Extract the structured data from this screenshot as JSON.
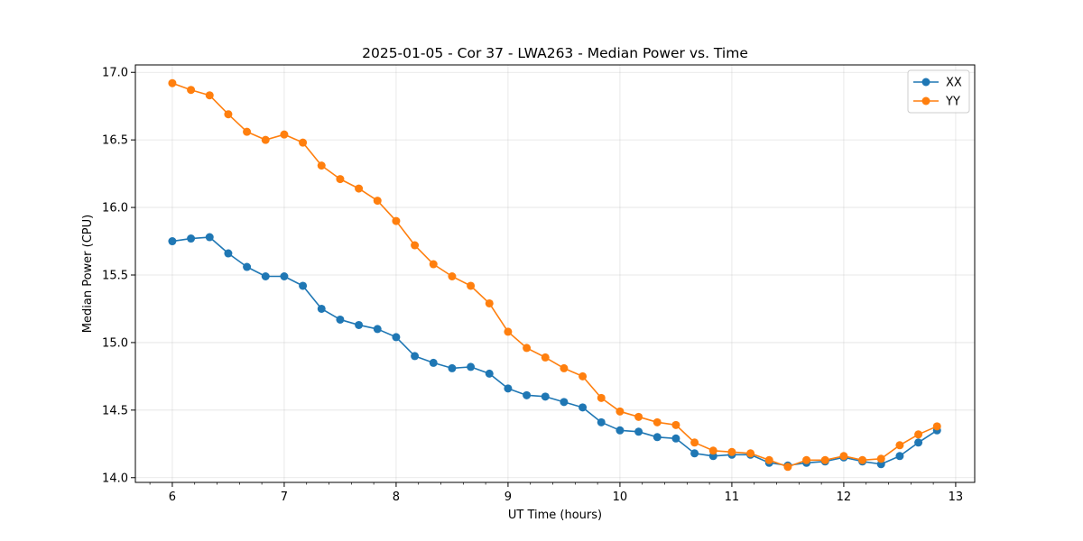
{
  "chart_data": {
    "type": "line",
    "title": "2025-01-05 - Cor 37 - LWA263 - Median Power vs. Time",
    "xlabel": "UT Time (hours)",
    "ylabel": "Median Power (CPU)",
    "xlim": [
      5.67,
      13.17
    ],
    "ylim": [
      13.965,
      17.055
    ],
    "xticks": [
      6,
      7,
      8,
      9,
      10,
      11,
      12,
      13
    ],
    "xtick_labels": [
      "6",
      "7",
      "8",
      "9",
      "10",
      "11",
      "12",
      "13"
    ],
    "xminor_step": 0.2,
    "yticks": [
      14.0,
      14.5,
      15.0,
      15.5,
      16.0,
      16.5,
      17.0
    ],
    "ytick_labels": [
      "14.0",
      "14.5",
      "15.0",
      "15.5",
      "16.0",
      "16.5",
      "17.0"
    ],
    "grid": true,
    "legend_position": "top-right",
    "x": [
      6.0,
      6.1667,
      6.3333,
      6.5,
      6.6667,
      6.8333,
      7.0,
      7.1667,
      7.3333,
      7.5,
      7.6667,
      7.8333,
      8.0,
      8.1667,
      8.3333,
      8.5,
      8.6667,
      8.8333,
      9.0,
      9.1667,
      9.3333,
      9.5,
      9.6667,
      9.8333,
      10.0,
      10.1667,
      10.3333,
      10.5,
      10.6667,
      10.8333,
      11.0,
      11.1667,
      11.3333,
      11.5,
      11.6667,
      11.8333,
      12.0,
      12.1667,
      12.3333,
      12.5,
      12.6667,
      12.8333
    ],
    "series": [
      {
        "name": "XX",
        "color": "#1f77b4",
        "values": [
          15.75,
          15.77,
          15.78,
          15.66,
          15.56,
          15.49,
          15.49,
          15.42,
          15.25,
          15.17,
          15.13,
          15.1,
          15.04,
          14.9,
          14.85,
          14.81,
          14.82,
          14.77,
          14.66,
          14.61,
          14.6,
          14.56,
          14.52,
          14.41,
          14.35,
          14.34,
          14.3,
          14.29,
          14.18,
          14.16,
          14.17,
          14.17,
          14.11,
          14.09,
          14.11,
          14.12,
          14.15,
          14.12,
          14.1,
          14.16,
          14.26,
          14.35
        ]
      },
      {
        "name": "YY",
        "color": "#ff7f0e",
        "values": [
          16.92,
          16.87,
          16.83,
          16.69,
          16.56,
          16.5,
          16.54,
          16.48,
          16.31,
          16.21,
          16.14,
          16.05,
          15.9,
          15.72,
          15.58,
          15.49,
          15.42,
          15.29,
          15.08,
          14.96,
          14.89,
          14.81,
          14.75,
          14.59,
          14.49,
          14.45,
          14.41,
          14.39,
          14.26,
          14.2,
          14.19,
          14.18,
          14.13,
          14.08,
          14.13,
          14.13,
          14.16,
          14.13,
          14.14,
          14.24,
          14.32,
          14.38
        ]
      }
    ]
  }
}
